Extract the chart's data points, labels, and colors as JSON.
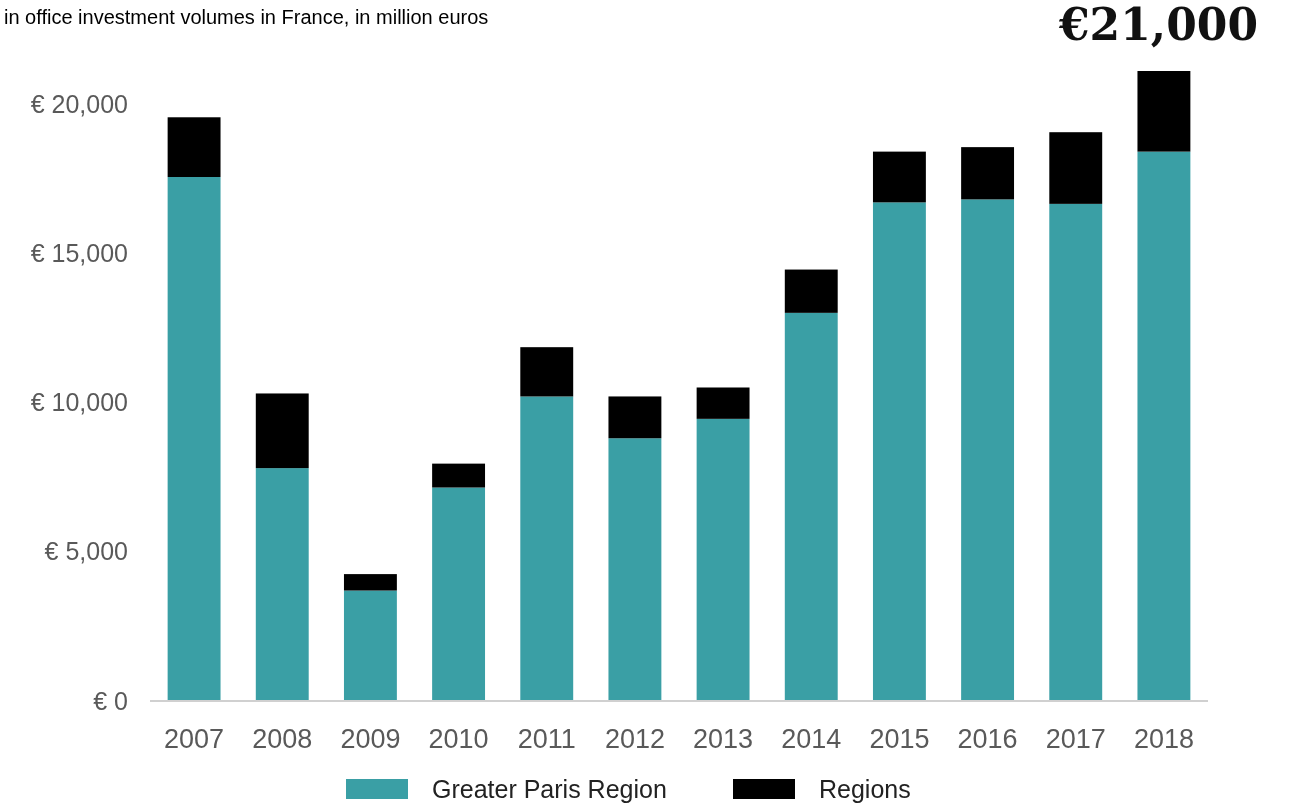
{
  "chart_data": {
    "type": "bar",
    "title": "in office investment volumes in France, in million euros",
    "annotations": [
      "€21,000"
    ],
    "categories": [
      "2007",
      "2008",
      "2009",
      "2010",
      "2011",
      "2012",
      "2013",
      "2014",
      "2015",
      "2016",
      "2017",
      "2018"
    ],
    "stacked": true,
    "series": [
      {
        "name": "Greater Paris Region",
        "color": "#3a9fa5",
        "values": [
          17550,
          7800,
          3700,
          7150,
          10200,
          8800,
          9450,
          13000,
          16700,
          16800,
          16650,
          18400
        ]
      },
      {
        "name": "Regions",
        "color": "#000000",
        "values": [
          2000,
          2500,
          550,
          800,
          1650,
          1400,
          1050,
          1450,
          1700,
          1750,
          2400,
          2700
        ]
      }
    ],
    "ylim": [
      0,
      21100
    ],
    "yticks": [
      {
        "value": 0,
        "label": "€ 0"
      },
      {
        "value": 5000,
        "label": "€ 5,000"
      },
      {
        "value": 10000,
        "label": "€ 10,000"
      },
      {
        "value": 15000,
        "label": "€ 15,000"
      },
      {
        "value": 20000,
        "label": "€ 20,000"
      }
    ],
    "grid": false,
    "legend": "bottom"
  }
}
